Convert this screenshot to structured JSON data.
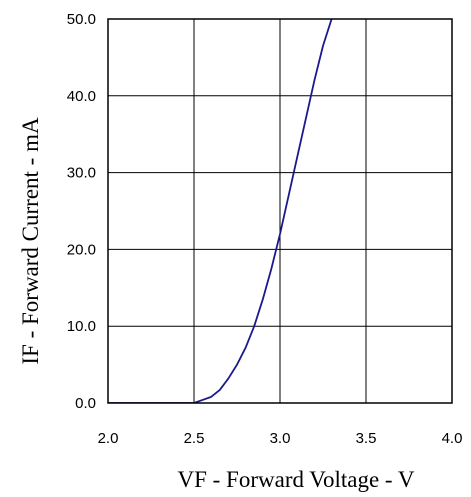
{
  "chart_data": {
    "type": "line",
    "xlabel": "VF - Forward Voltage - V",
    "ylabel": "IF - Forward Current - mA",
    "xlim": [
      2.0,
      4.0
    ],
    "ylim": [
      0.0,
      50.0
    ],
    "x_ticks": [
      "2.0",
      "2.5",
      "3.0",
      "3.5",
      "4.0"
    ],
    "y_ticks": [
      "0.0",
      "10.0",
      "20.0",
      "30.0",
      "40.0",
      "50.0"
    ],
    "grid": true,
    "colors": {
      "series": "#1a1a8c",
      "grid": "#000000"
    },
    "series": [
      {
        "x": [
          2.0,
          2.5,
          2.55,
          2.6,
          2.65,
          2.7,
          2.75,
          2.8,
          2.85,
          2.9,
          2.95,
          3.0,
          3.05,
          3.1,
          3.15,
          3.2,
          3.25,
          3.3,
          3.35
        ],
        "y": [
          0.0,
          0.0,
          0.4,
          0.8,
          1.7,
          3.2,
          5.0,
          7.2,
          10.0,
          13.5,
          17.5,
          22.0,
          27.0,
          32.0,
          37.0,
          42.0,
          46.5,
          50.0,
          52.0
        ]
      }
    ]
  }
}
